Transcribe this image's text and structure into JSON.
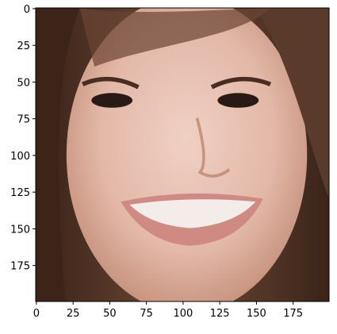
{
  "chart_data": {
    "type": "image",
    "xlim": [
      -0.5,
      199.5
    ],
    "ylim": [
      199.5,
      -0.5
    ],
    "xticks": [
      0,
      25,
      50,
      75,
      100,
      125,
      150,
      175
    ],
    "yticks": [
      0,
      25,
      50,
      75,
      100,
      125,
      150,
      175
    ]
  }
}
